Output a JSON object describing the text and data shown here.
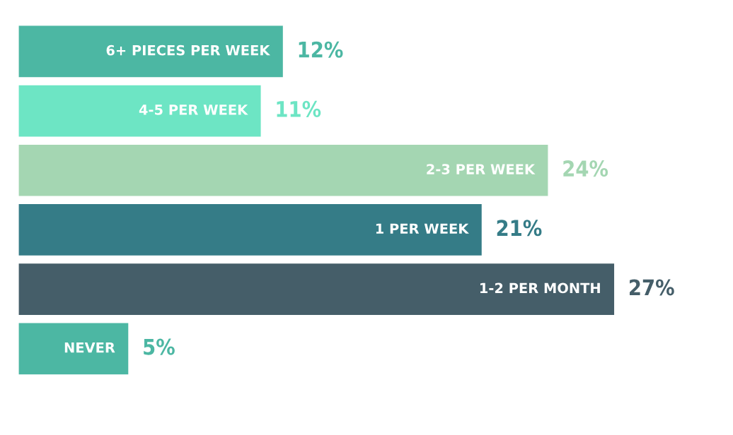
{
  "chart_data": {
    "type": "bar",
    "orientation": "horizontal",
    "categories": [
      "6+ PIECES PER WEEK",
      "4-5 PER WEEK",
      "2-3 PER WEEK",
      "1 PER WEEK",
      "1-2 PER MONTH",
      "NEVER"
    ],
    "values": [
      12,
      11,
      24,
      21,
      27,
      5
    ],
    "value_labels": [
      "12%",
      "11%",
      "24%",
      "21%",
      "27%",
      "5%"
    ],
    "colors": [
      "#4cb7a3",
      "#6de5c4",
      "#a4d6b2",
      "#357c87",
      "#455e69",
      "#4cb7a3"
    ],
    "grid": false
  }
}
